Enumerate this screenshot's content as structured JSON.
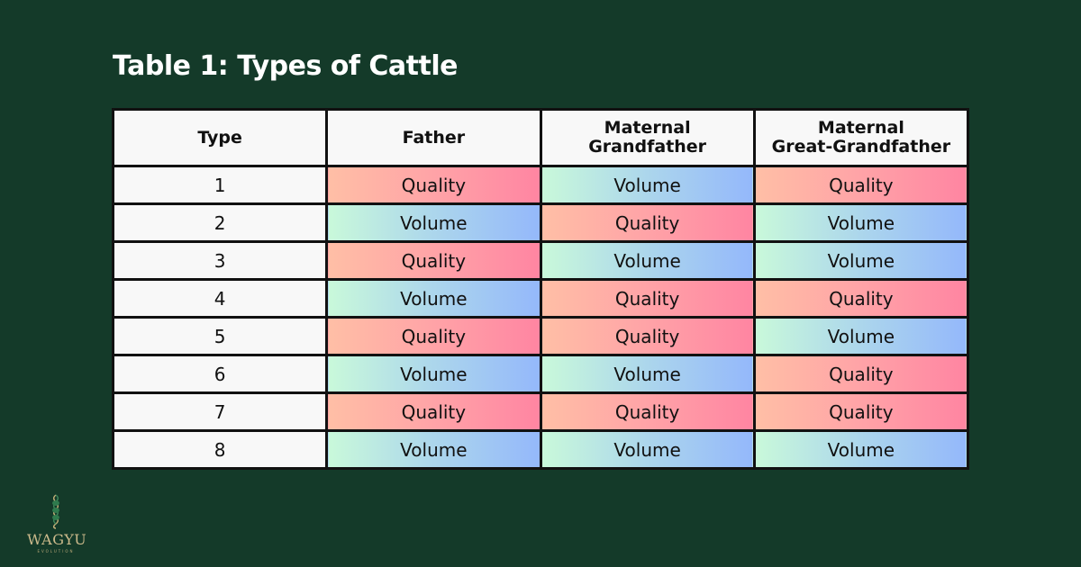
{
  "title": "Table 1: Types of Cattle",
  "table": {
    "headers": [
      "Type",
      "Father",
      "Maternal\nGrandfather",
      "Maternal\nGreat-Grandfather"
    ],
    "header_lines": [
      [
        "Type"
      ],
      [
        "Father"
      ],
      [
        "Maternal",
        "Grandfather"
      ],
      [
        "Maternal",
        "Great-Grandfather"
      ]
    ],
    "rows": [
      [
        "1",
        "Quality",
        "Volume",
        "Quality"
      ],
      [
        "2",
        "Volume",
        "Quality",
        "Volume"
      ],
      [
        "3",
        "Quality",
        "Volume",
        "Volume"
      ],
      [
        "4",
        "Volume",
        "Quality",
        "Quality"
      ],
      [
        "5",
        "Quality",
        "Quality",
        "Volume"
      ],
      [
        "6",
        "Volume",
        "Volume",
        "Quality"
      ],
      [
        "7",
        "Quality",
        "Quality",
        "Quality"
      ],
      [
        "8",
        "Volume",
        "Volume",
        "Volume"
      ]
    ]
  },
  "colors": {
    "background": "#143a29",
    "quality_gradient": [
      "#ffbfa6",
      "#ff85a2"
    ],
    "volume_gradient": [
      "#c9f9da",
      "#94b8fb"
    ]
  },
  "logo": {
    "brand": "WAGYU",
    "tagline": "EVOLUTION",
    "icon": "dna-helix-icon"
  }
}
